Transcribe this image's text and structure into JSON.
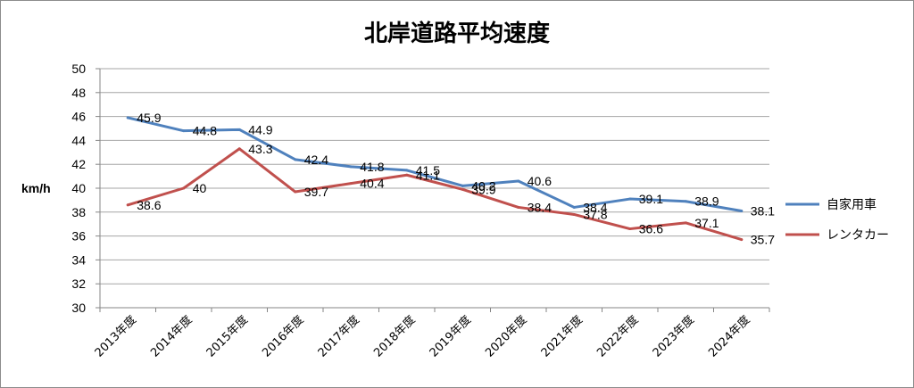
{
  "chart_data": {
    "type": "line",
    "title": "北岸道路平均速度",
    "ylabel": "km/h",
    "xlabel": "",
    "ylim": [
      30,
      50
    ],
    "ytick_step": 2,
    "grid": true,
    "legend_position": "right",
    "categories": [
      "2013年度",
      "2014年度",
      "2015年度",
      "2016年度",
      "2017年度",
      "2018年度",
      "2019年度",
      "2020年度",
      "2021年度",
      "2022年度",
      "2023年度",
      "2024年度"
    ],
    "series": [
      {
        "name": "自家用車",
        "color": "#4f81bd",
        "values": [
          45.9,
          44.8,
          44.9,
          42.4,
          41.8,
          41.5,
          40.2,
          40.6,
          38.4,
          39.1,
          38.9,
          38.1
        ]
      },
      {
        "name": "レンタカー",
        "color": "#c0504d",
        "values": [
          38.6,
          40,
          43.3,
          39.7,
          40.4,
          41.1,
          39.9,
          38.4,
          37.8,
          36.6,
          37.1,
          35.7
        ]
      }
    ]
  }
}
